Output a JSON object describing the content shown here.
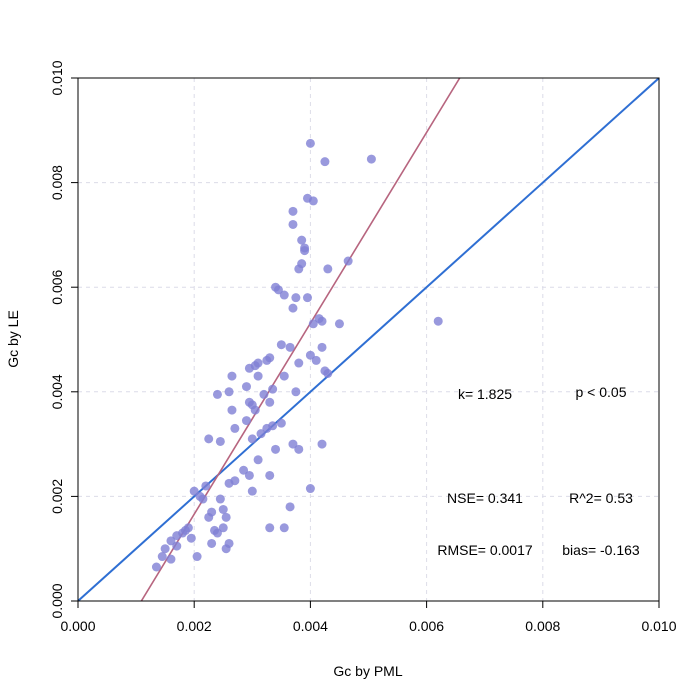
{
  "chart_data": {
    "type": "scatter",
    "title": "",
    "xlabel": "Gc by PML",
    "ylabel": "Gc by LE",
    "xlim": [
      0,
      0.01
    ],
    "ylim": [
      0,
      0.01
    ],
    "x_ticks": [
      "0.000",
      "0.002",
      "0.004",
      "0.006",
      "0.008",
      "0.010"
    ],
    "y_ticks": [
      "0.000",
      "0.002",
      "0.004",
      "0.006",
      "0.008",
      "0.010"
    ],
    "grid": true,
    "point_color": "#7f7fd5",
    "regression_color": "#b7657f",
    "one_to_one_color": "#2f6fd3",
    "regression_line": {
      "slope": 1.825,
      "intercept": -0.00199
    },
    "one_to_one_line": {
      "slope": 1,
      "intercept": 0
    },
    "points": [
      [
        0.00135,
        0.00065
      ],
      [
        0.00145,
        0.00085
      ],
      [
        0.0015,
        0.001
      ],
      [
        0.0016,
        0.0008
      ],
      [
        0.0016,
        0.00115
      ],
      [
        0.0017,
        0.00125
      ],
      [
        0.0017,
        0.00105
      ],
      [
        0.0018,
        0.0013
      ],
      [
        0.00185,
        0.00135
      ],
      [
        0.0019,
        0.0014
      ],
      [
        0.00195,
        0.0012
      ],
      [
        0.002,
        0.0021
      ],
      [
        0.00205,
        0.00085
      ],
      [
        0.0021,
        0.002
      ],
      [
        0.00215,
        0.00195
      ],
      [
        0.0022,
        0.0022
      ],
      [
        0.00225,
        0.0031
      ],
      [
        0.00225,
        0.0016
      ],
      [
        0.0023,
        0.0011
      ],
      [
        0.0023,
        0.0017
      ],
      [
        0.00235,
        0.00135
      ],
      [
        0.0024,
        0.00395
      ],
      [
        0.0024,
        0.0013
      ],
      [
        0.00245,
        0.00195
      ],
      [
        0.00245,
        0.00305
      ],
      [
        0.0025,
        0.00175
      ],
      [
        0.0025,
        0.0014
      ],
      [
        0.00255,
        0.001
      ],
      [
        0.00255,
        0.0016
      ],
      [
        0.0026,
        0.004
      ],
      [
        0.0026,
        0.00225
      ],
      [
        0.0026,
        0.0011
      ],
      [
        0.00265,
        0.0043
      ],
      [
        0.00265,
        0.00365
      ],
      [
        0.0027,
        0.0033
      ],
      [
        0.0027,
        0.0023
      ],
      [
        0.00285,
        0.0025
      ],
      [
        0.0029,
        0.00345
      ],
      [
        0.0029,
        0.0041
      ],
      [
        0.00295,
        0.0038
      ],
      [
        0.00295,
        0.00445
      ],
      [
        0.00295,
        0.0024
      ],
      [
        0.003,
        0.00375
      ],
      [
        0.003,
        0.0031
      ],
      [
        0.003,
        0.0021
      ],
      [
        0.00305,
        0.0045
      ],
      [
        0.00305,
        0.00365
      ],
      [
        0.0031,
        0.00455
      ],
      [
        0.0031,
        0.0043
      ],
      [
        0.0031,
        0.0027
      ],
      [
        0.00315,
        0.0032
      ],
      [
        0.0032,
        0.00395
      ],
      [
        0.00325,
        0.0046
      ],
      [
        0.00325,
        0.0033
      ],
      [
        0.0033,
        0.00465
      ],
      [
        0.0033,
        0.0038
      ],
      [
        0.0033,
        0.0024
      ],
      [
        0.0033,
        0.0014
      ],
      [
        0.00335,
        0.00405
      ],
      [
        0.00335,
        0.00335
      ],
      [
        0.0034,
        0.006
      ],
      [
        0.0034,
        0.0029
      ],
      [
        0.00345,
        0.00595
      ],
      [
        0.0035,
        0.0049
      ],
      [
        0.0035,
        0.0034
      ],
      [
        0.00355,
        0.00585
      ],
      [
        0.00355,
        0.0043
      ],
      [
        0.00355,
        0.0014
      ],
      [
        0.00365,
        0.00485
      ],
      [
        0.00365,
        0.0018
      ],
      [
        0.0037,
        0.0072
      ],
      [
        0.0037,
        0.00745
      ],
      [
        0.0037,
        0.0056
      ],
      [
        0.0037,
        0.003
      ],
      [
        0.00375,
        0.0058
      ],
      [
        0.00375,
        0.004
      ],
      [
        0.0038,
        0.00635
      ],
      [
        0.0038,
        0.00455
      ],
      [
        0.0038,
        0.0029
      ],
      [
        0.00385,
        0.0069
      ],
      [
        0.00385,
        0.00645
      ],
      [
        0.0039,
        0.00675
      ],
      [
        0.0039,
        0.0067
      ],
      [
        0.00395,
        0.0077
      ],
      [
        0.00395,
        0.0058
      ],
      [
        0.004,
        0.00875
      ],
      [
        0.004,
        0.0047
      ],
      [
        0.004,
        0.00215
      ],
      [
        0.00405,
        0.00765
      ],
      [
        0.00405,
        0.0053
      ],
      [
        0.0041,
        0.0046
      ],
      [
        0.00415,
        0.0054
      ],
      [
        0.0042,
        0.00535
      ],
      [
        0.0042,
        0.00485
      ],
      [
        0.0042,
        0.003
      ],
      [
        0.00425,
        0.0084
      ],
      [
        0.00425,
        0.0044
      ],
      [
        0.0043,
        0.00635
      ],
      [
        0.0043,
        0.00435
      ],
      [
        0.0045,
        0.0053
      ],
      [
        0.00465,
        0.0065
      ],
      [
        0.00505,
        0.00845
      ],
      [
        0.0062,
        0.00535
      ]
    ],
    "annotations": {
      "k": "k= 1.825",
      "p": "p < 0.05",
      "nse": "NSE= 0.341",
      "r2": "R^2= 0.53",
      "rmse": "RMSE= 0.0017",
      "bias": "bias= -0.163"
    }
  }
}
